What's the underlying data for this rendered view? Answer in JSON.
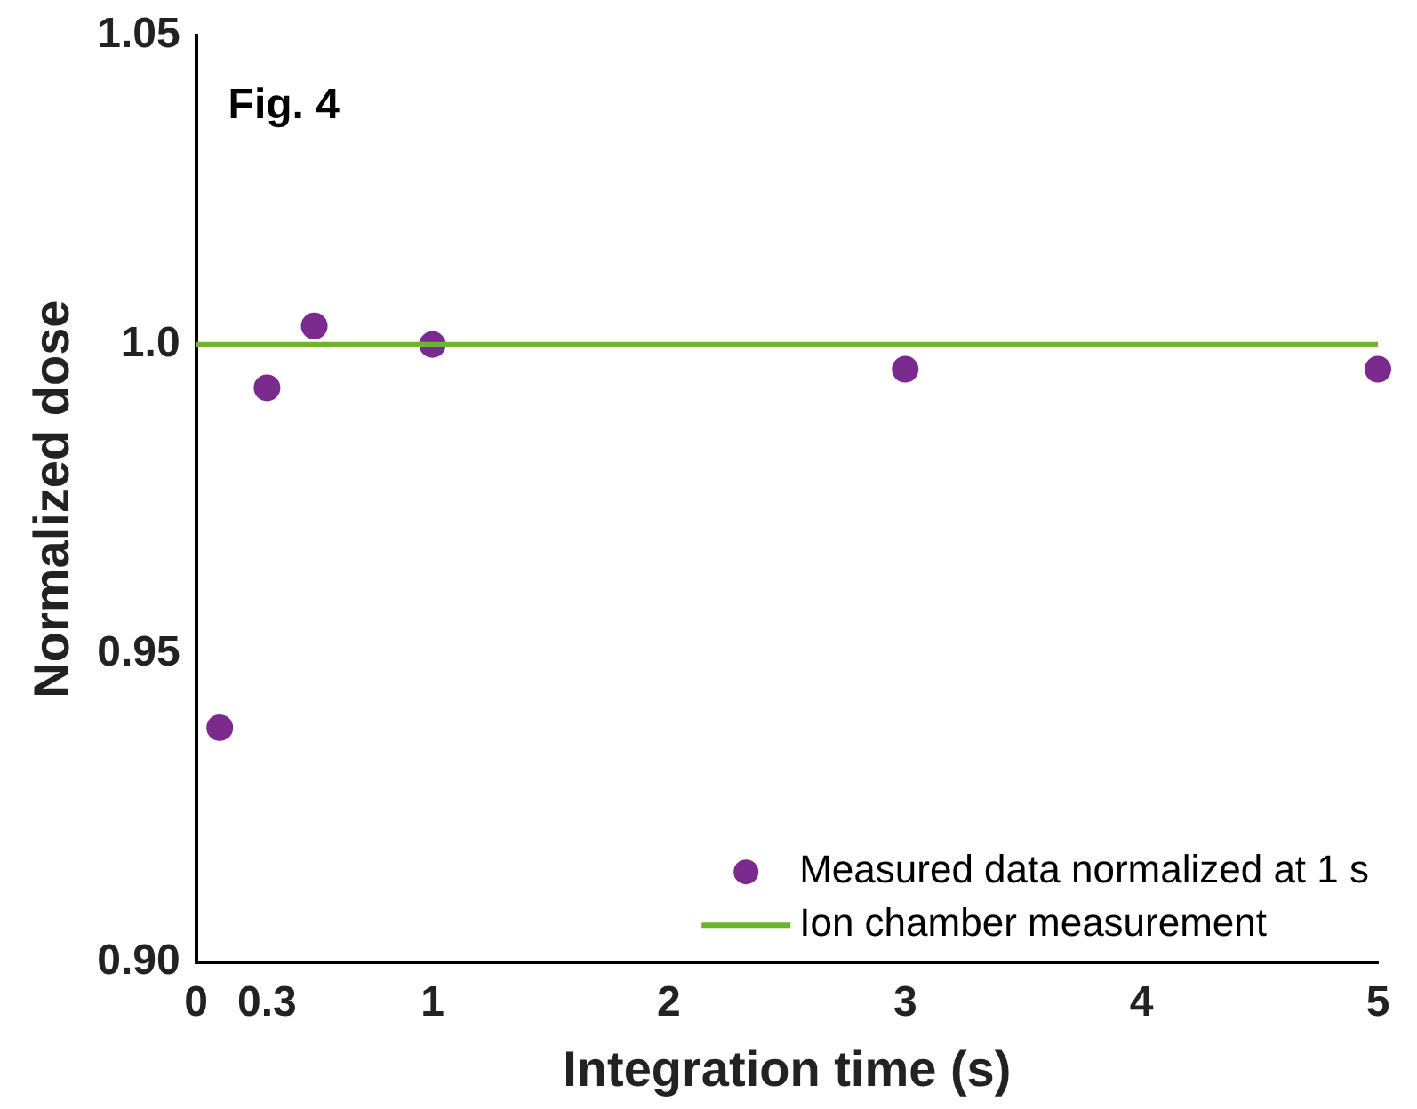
{
  "chart_data": {
    "type": "scatter",
    "xlabel": "Integration time (s)",
    "ylabel": "Normalized dose",
    "annotations": [
      "Fig. 4"
    ],
    "x": [
      0.1,
      0.3,
      0.5,
      1,
      3,
      5
    ],
    "series": [
      {
        "name": "Measured data normalized at 1 s",
        "color": "#7b2a8e",
        "values": [
          0.938,
          0.993,
          1.003,
          1.0,
          0.996,
          0.996
        ]
      }
    ],
    "ref_lines": [
      {
        "axis": "y",
        "value": 1.0,
        "label": "Ion chamber measurement",
        "color": "#6fb32e",
        "line_style": "solid"
      }
    ],
    "xlim": [
      0,
      5
    ],
    "xticks": [
      0,
      0.3,
      1,
      2,
      3,
      4,
      5
    ],
    "ylim": [
      0.9,
      1.05
    ],
    "yticks": [
      {
        "value": 0.9,
        "label": "0.90"
      },
      {
        "value": 0.95,
        "label": "0.95"
      },
      {
        "value": 1.0,
        "label": "1.0"
      },
      {
        "value": 1.05,
        "label": "1.05"
      }
    ],
    "grid": false,
    "legend": "bottom right",
    "marker": "circle"
  }
}
